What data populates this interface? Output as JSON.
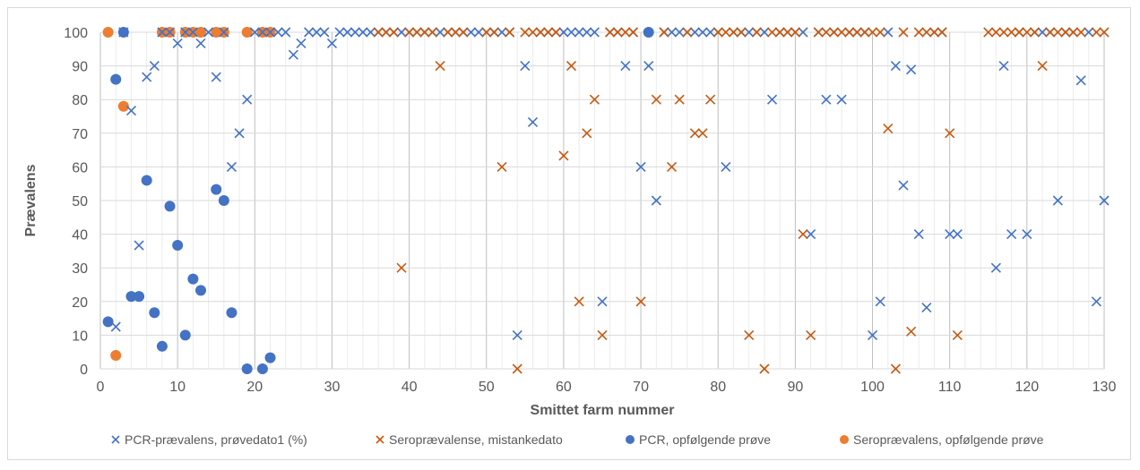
{
  "chart_data": {
    "type": "scatter",
    "xlabel": "Smittet farm nummer",
    "ylabel": "Prævalens",
    "xlim": [
      0,
      130
    ],
    "ylim": [
      0,
      100
    ],
    "xticks": [
      0,
      10,
      20,
      30,
      40,
      50,
      60,
      70,
      80,
      90,
      100,
      110,
      120,
      130
    ],
    "yticks": [
      0,
      10,
      20,
      30,
      40,
      50,
      60,
      70,
      80,
      90,
      100
    ],
    "grid": "vertical minor and major gridlines, horizontal gridlines",
    "legend_position": "bottom",
    "series": [
      {
        "name": "PCR-prævalens, prøvedato1 (%)",
        "marker": "x",
        "color": "#4472C4",
        "points": [
          [
            2,
            12.5
          ],
          [
            3,
            100
          ],
          [
            4,
            76.7
          ],
          [
            5,
            36.7
          ],
          [
            6,
            86.7
          ],
          [
            7,
            90
          ],
          [
            8,
            100
          ],
          [
            9,
            100
          ],
          [
            10,
            96.7
          ],
          [
            11,
            100
          ],
          [
            12,
            100
          ],
          [
            13,
            96.7
          ],
          [
            14,
            100
          ],
          [
            15,
            86.7
          ],
          [
            16,
            100
          ],
          [
            17,
            60
          ],
          [
            18,
            70
          ],
          [
            19,
            80
          ],
          [
            20,
            100
          ],
          [
            21,
            100
          ],
          [
            22,
            100
          ],
          [
            23,
            100
          ],
          [
            24,
            100
          ],
          [
            25,
            93.3
          ],
          [
            26,
            96.7
          ],
          [
            27,
            100
          ],
          [
            28,
            100
          ],
          [
            29,
            100
          ],
          [
            30,
            96.7
          ],
          [
            31,
            100
          ],
          [
            32,
            100
          ],
          [
            33,
            100
          ],
          [
            34,
            100
          ],
          [
            35,
            100
          ],
          [
            36,
            100
          ],
          [
            37,
            100
          ],
          [
            38,
            100
          ],
          [
            39,
            100
          ],
          [
            40,
            100
          ],
          [
            41,
            100
          ],
          [
            42,
            100
          ],
          [
            43,
            100
          ],
          [
            44,
            100
          ],
          [
            45,
            100
          ],
          [
            46,
            100
          ],
          [
            47,
            100
          ],
          [
            48,
            100
          ],
          [
            49,
            100
          ],
          [
            50,
            100
          ],
          [
            51,
            100
          ],
          [
            52,
            100
          ],
          [
            53,
            100
          ],
          [
            54,
            10
          ],
          [
            55,
            90
          ],
          [
            56,
            73.3
          ],
          [
            57,
            100
          ],
          [
            58,
            100
          ],
          [
            59,
            100
          ],
          [
            60,
            100
          ],
          [
            61,
            100
          ],
          [
            62,
            100
          ],
          [
            63,
            100
          ],
          [
            64,
            100
          ],
          [
            65,
            20
          ],
          [
            66,
            100
          ],
          [
            67,
            100
          ],
          [
            68,
            90
          ],
          [
            69,
            100
          ],
          [
            70,
            60
          ],
          [
            71,
            90
          ],
          [
            72,
            50
          ],
          [
            73,
            100
          ],
          [
            74,
            100
          ],
          [
            75,
            100
          ],
          [
            76,
            100
          ],
          [
            77,
            100
          ],
          [
            78,
            100
          ],
          [
            79,
            100
          ],
          [
            80,
            100
          ],
          [
            81,
            60
          ],
          [
            82,
            100
          ],
          [
            83,
            100
          ],
          [
            84,
            100
          ],
          [
            85,
            100
          ],
          [
            86,
            100
          ],
          [
            87,
            80
          ],
          [
            88,
            100
          ],
          [
            89,
            100
          ],
          [
            90,
            100
          ],
          [
            91,
            100
          ],
          [
            92,
            40
          ],
          [
            93,
            100
          ],
          [
            94,
            80
          ],
          [
            95,
            100
          ],
          [
            96,
            80
          ],
          [
            97,
            100
          ],
          [
            98,
            100
          ],
          [
            99,
            100
          ],
          [
            100,
            10
          ],
          [
            101,
            20
          ],
          [
            102,
            100
          ],
          [
            103,
            90
          ],
          [
            104,
            54.5
          ],
          [
            105,
            88.9
          ],
          [
            106,
            40
          ],
          [
            107,
            18.2
          ],
          [
            108,
            100
          ],
          [
            109,
            100
          ],
          [
            110,
            40
          ],
          [
            111,
            40
          ],
          [
            116,
            30
          ],
          [
            117,
            90
          ],
          [
            118,
            40
          ],
          [
            119,
            100
          ],
          [
            120,
            40
          ],
          [
            121,
            100
          ],
          [
            122,
            100
          ],
          [
            123,
            100
          ],
          [
            124,
            50
          ],
          [
            125,
            100
          ],
          [
            126,
            100
          ],
          [
            127,
            85.7
          ],
          [
            128,
            100
          ],
          [
            129,
            20
          ],
          [
            130,
            50
          ]
        ]
      },
      {
        "name": "Seroprævalense, mistankedato",
        "marker": "x",
        "color": "#C55A11",
        "points": [
          [
            36,
            100
          ],
          [
            37,
            100
          ],
          [
            38,
            100
          ],
          [
            39,
            30
          ],
          [
            40,
            100
          ],
          [
            41,
            100
          ],
          [
            42,
            100
          ],
          [
            43,
            100
          ],
          [
            44,
            90
          ],
          [
            45,
            100
          ],
          [
            46,
            100
          ],
          [
            47,
            100
          ],
          [
            50,
            100
          ],
          [
            51,
            100
          ],
          [
            52,
            60
          ],
          [
            53,
            100
          ],
          [
            54,
            0
          ],
          [
            55,
            100
          ],
          [
            56,
            100
          ],
          [
            57,
            100
          ],
          [
            58,
            100
          ],
          [
            59,
            100
          ],
          [
            60,
            63.3
          ],
          [
            61,
            90
          ],
          [
            62,
            20
          ],
          [
            63,
            70
          ],
          [
            64,
            80
          ],
          [
            65,
            10
          ],
          [
            66,
            100
          ],
          [
            67,
            100
          ],
          [
            68,
            100
          ],
          [
            69,
            100
          ],
          [
            70,
            20
          ],
          [
            72,
            80
          ],
          [
            73,
            100
          ],
          [
            74,
            60
          ],
          [
            75,
            80
          ],
          [
            76,
            100
          ],
          [
            77,
            70
          ],
          [
            78,
            70
          ],
          [
            79,
            80
          ],
          [
            80,
            100
          ],
          [
            81,
            100
          ],
          [
            82,
            100
          ],
          [
            83,
            100
          ],
          [
            84,
            10
          ],
          [
            85,
            100
          ],
          [
            86,
            0
          ],
          [
            87,
            100
          ],
          [
            88,
            100
          ],
          [
            89,
            100
          ],
          [
            90,
            100
          ],
          [
            91,
            40
          ],
          [
            92,
            10
          ],
          [
            93,
            100
          ],
          [
            94,
            100
          ],
          [
            95,
            100
          ],
          [
            96,
            100
          ],
          [
            97,
            100
          ],
          [
            98,
            100
          ],
          [
            99,
            100
          ],
          [
            100,
            100
          ],
          [
            101,
            100
          ],
          [
            102,
            71.4
          ],
          [
            103,
            0
          ],
          [
            104,
            100
          ],
          [
            105,
            11.1
          ],
          [
            106,
            100
          ],
          [
            107,
            100
          ],
          [
            108,
            100
          ],
          [
            109,
            100
          ],
          [
            110,
            70
          ],
          [
            111,
            10
          ],
          [
            115,
            100
          ],
          [
            116,
            100
          ],
          [
            117,
            100
          ],
          [
            118,
            100
          ],
          [
            119,
            100
          ],
          [
            120,
            100
          ],
          [
            121,
            100
          ],
          [
            122,
            90
          ],
          [
            123,
            100
          ],
          [
            124,
            100
          ],
          [
            125,
            100
          ],
          [
            126,
            100
          ],
          [
            127,
            100
          ],
          [
            129,
            100
          ],
          [
            130,
            100
          ]
        ]
      },
      {
        "name": "PCR, opfølgende prøve",
        "marker": "circle",
        "color": "#4472C4",
        "points": [
          [
            1,
            14
          ],
          [
            2,
            86
          ],
          [
            3,
            100
          ],
          [
            4,
            21.5
          ],
          [
            5,
            21.5
          ],
          [
            6,
            56
          ],
          [
            7,
            16.7
          ],
          [
            8,
            6.7
          ],
          [
            9,
            48.3
          ],
          [
            10,
            36.7
          ],
          [
            11,
            10
          ],
          [
            12,
            26.7
          ],
          [
            13,
            23.3
          ],
          [
            15,
            53.3
          ],
          [
            16,
            50
          ],
          [
            17,
            16.7
          ],
          [
            19,
            0
          ],
          [
            21,
            0
          ],
          [
            22,
            3.3
          ],
          [
            71,
            100
          ]
        ]
      },
      {
        "name": "Seroprævalens, opfølgende prøve",
        "marker": "circle",
        "color": "#ED7D31",
        "points": [
          [
            1,
            100
          ],
          [
            2,
            4
          ],
          [
            3,
            78
          ],
          [
            8,
            100
          ],
          [
            9,
            100
          ],
          [
            11,
            100
          ],
          [
            12,
            100
          ],
          [
            13,
            100
          ],
          [
            15,
            100
          ],
          [
            16,
            100
          ],
          [
            19,
            100
          ],
          [
            21,
            100
          ],
          [
            22,
            100
          ]
        ]
      }
    ]
  }
}
